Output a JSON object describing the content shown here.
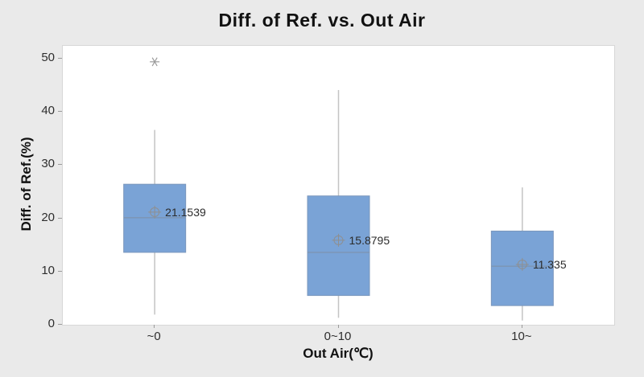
{
  "chart_data": {
    "type": "box",
    "title": "Diff. of Ref. vs. Out Air",
    "xlabel": "Out Air(℃)",
    "ylabel": "Diff. of Ref.(%)",
    "ylim": [
      0,
      52.4
    ],
    "yticks": [
      0,
      10,
      20,
      30,
      40,
      50
    ],
    "grid": false,
    "legend": false,
    "categories": [
      "~0",
      "0~10",
      "10~"
    ],
    "boxes": [
      {
        "category": "~0",
        "whisker_low": 1.9,
        "q1": 13.6,
        "median": 20.1,
        "q3": 26.4,
        "whisker_high": 36.6,
        "mean": 21.1539,
        "mean_label": "21.1539",
        "outliers": [
          49.4
        ]
      },
      {
        "category": "0~10",
        "whisker_low": 1.3,
        "q1": 5.5,
        "median": 13.6,
        "q3": 24.2,
        "whisker_high": 44.1,
        "mean": 15.8795,
        "mean_label": "15.8795",
        "outliers": []
      },
      {
        "category": "10~",
        "whisker_low": 0.8,
        "q1": 3.6,
        "median": 11.0,
        "q3": 17.6,
        "whisker_high": 25.8,
        "mean": 11.335,
        "mean_label": "11.335",
        "outliers": []
      }
    ],
    "colors": {
      "background": "#eaeaea",
      "plot_background": "#ffffff",
      "plot_border": "#d7d7d7",
      "box_fill": "#7aa3d6",
      "box_border": "#7b97bc",
      "whisker": "#c4c4c4",
      "median": "#7d8fa5",
      "mean_marker": "#8f8f8f",
      "outlier": "#9c9c9c",
      "title_text": "#111111",
      "tick_text": "#2e2e2e",
      "label_text": "#2b2b2b"
    }
  }
}
